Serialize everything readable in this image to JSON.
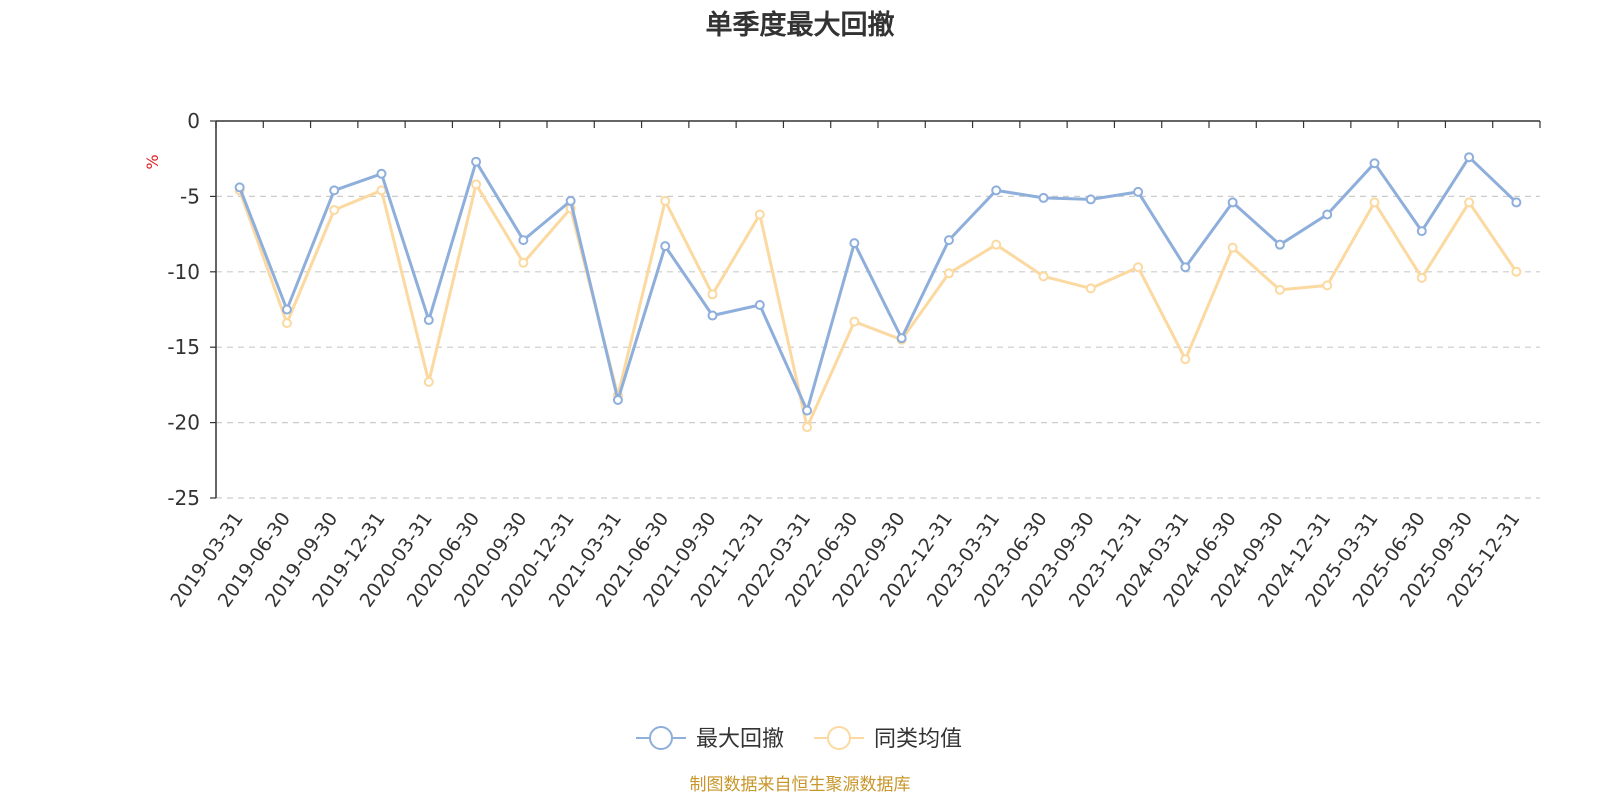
{
  "chart_data": {
    "type": "line",
    "title": "单季度最大回撤",
    "unit_label": "%",
    "source": "制图数据来自恒生聚源数据库",
    "ylim": [
      -25,
      0
    ],
    "y_ticks": [
      0,
      -5,
      -10,
      -15,
      -20,
      -25
    ],
    "grid": "horizontal-dashed",
    "legend_position": "bottom-center",
    "categories": [
      "2019-03-31",
      "2019-06-30",
      "2019-09-30",
      "2019-12-31",
      "2020-03-31",
      "2020-06-30",
      "2020-09-30",
      "2020-12-31",
      "2021-03-31",
      "2021-06-30",
      "2021-09-30",
      "2021-12-31",
      "2022-03-31",
      "2022-06-30",
      "2022-09-30",
      "2022-12-31",
      "2023-03-31",
      "2023-06-30",
      "2023-09-30",
      "2023-12-31",
      "2024-03-31",
      "2024-06-30",
      "2024-09-30",
      "2024-12-31",
      "2025-03-31",
      "2025-06-30",
      "2025-09-30",
      "2025-12-31"
    ],
    "series": [
      {
        "name": "最大回撤",
        "color": "#8eaedb",
        "values": [
          -4.4,
          -12.5,
          -4.6,
          -3.5,
          -13.2,
          -2.7,
          -7.9,
          -5.3,
          -18.5,
          -8.3,
          -12.9,
          -12.2,
          -19.2,
          -8.1,
          -14.4,
          -7.9,
          -4.6,
          -5.1,
          -5.2,
          -4.7,
          -9.7,
          -5.4,
          -8.2,
          -6.2,
          -2.8,
          -7.3,
          -2.4,
          -5.4
        ]
      },
      {
        "name": "同类均值",
        "color": "#fbd9a0",
        "values": [
          -4.6,
          -13.4,
          -5.9,
          -4.6,
          -17.3,
          -4.2,
          -9.4,
          -5.8,
          -18.2,
          -5.3,
          -11.5,
          -6.2,
          -20.3,
          -13.3,
          -14.5,
          -10.1,
          -8.2,
          -10.3,
          -11.1,
          -9.7,
          -15.8,
          -8.4,
          -11.2,
          -10.9,
          -5.4,
          -10.4,
          -5.4,
          -10.0
        ]
      }
    ]
  }
}
